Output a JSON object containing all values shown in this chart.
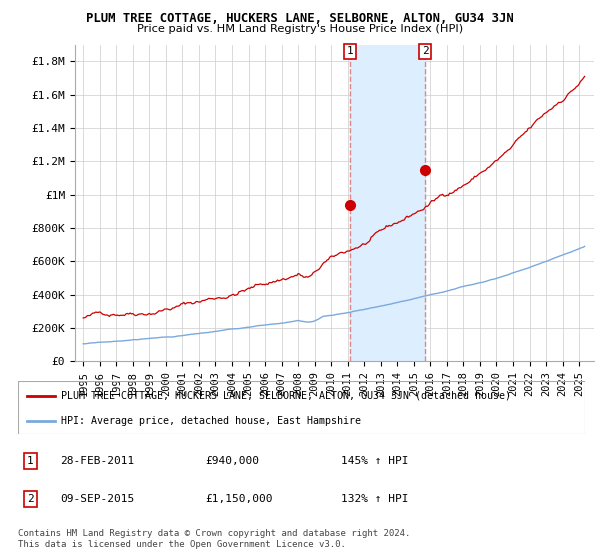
{
  "title": "PLUM TREE COTTAGE, HUCKERS LANE, SELBORNE, ALTON, GU34 3JN",
  "subtitle": "Price paid vs. HM Land Registry's House Price Index (HPI)",
  "legend_line1": "PLUM TREE COTTAGE, HUCKERS LANE, SELBORNE, ALTON, GU34 3JN (detached house)",
  "legend_line2": "HPI: Average price, detached house, East Hampshire",
  "annotation1_date": "28-FEB-2011",
  "annotation1_price": "£940,000",
  "annotation1_hpi": "145% ↑ HPI",
  "annotation2_date": "09-SEP-2015",
  "annotation2_price": "£1,150,000",
  "annotation2_hpi": "132% ↑ HPI",
  "footer": "Contains HM Land Registry data © Crown copyright and database right 2024.\nThis data is licensed under the Open Government Licence v3.0.",
  "house_color": "#cc0000",
  "hpi_color": "#7aaadd",
  "highlight_color": "#ddeeff",
  "dashed_line_color": "#dd8888",
  "ylim_max": 1900000,
  "yticks": [
    0,
    200000,
    400000,
    600000,
    800000,
    1000000,
    1200000,
    1400000,
    1600000,
    1800000
  ],
  "ytick_labels": [
    "£0",
    "£200K",
    "£400K",
    "£600K",
    "£800K",
    "£1M",
    "£1.2M",
    "£1.4M",
    "£1.6M",
    "£1.8M"
  ],
  "sale1_year": 2011.15,
  "sale1_price": 940000,
  "sale2_year": 2015.69,
  "sale2_price": 1150000,
  "xmin": 1994.5,
  "xmax": 2025.9
}
